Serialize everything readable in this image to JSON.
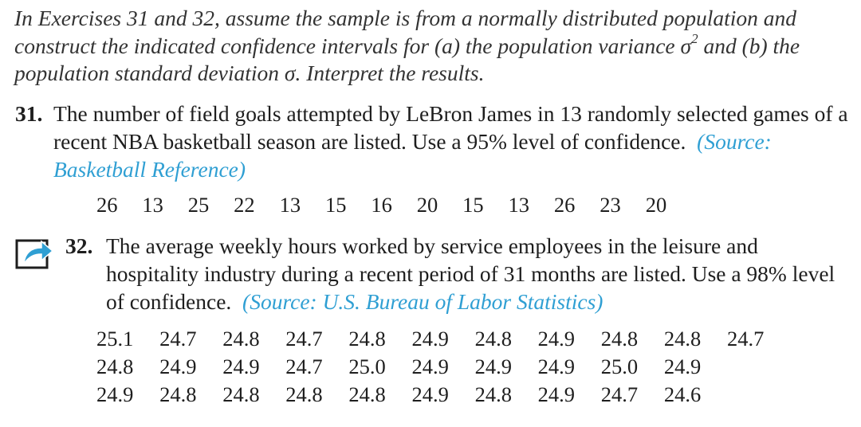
{
  "intro": {
    "text_a": "In Exercises 31 and 32, assume the sample is from a normally distributed population and construct the indicated confidence intervals for (a) the population variance σ",
    "sup": "2",
    "text_b": " and (b) the population standard deviation σ. Interpret the results."
  },
  "ex31": {
    "number": "31.",
    "text": "The number of field goals attempted by LeBron James in 13 randomly selected games of a recent NBA basketball season are listed. Use a 95% level of confidence.",
    "source": "(Source: Basketball Reference)",
    "data": [
      "26",
      "13",
      "25",
      "22",
      "13",
      "15",
      "16",
      "20",
      "15",
      "13",
      "26",
      "23",
      "20"
    ]
  },
  "ex32": {
    "icon": "share-arrow-icon",
    "number": "32.",
    "text": "The average weekly hours worked by service employees in the leisure and hospitality industry during a recent period of 31 months are listed. Use a 98% level of confidence.",
    "source": "(Source: U.S. Bureau of Labor Statistics)",
    "data_rows": [
      [
        "25.1",
        "24.7",
        "24.8",
        "24.7",
        "24.8",
        "24.9",
        "24.8",
        "24.9",
        "24.8",
        "24.8",
        "24.7"
      ],
      [
        "24.8",
        "24.9",
        "24.9",
        "24.7",
        "25.0",
        "24.9",
        "24.9",
        "24.9",
        "25.0",
        "24.9"
      ],
      [
        "24.9",
        "24.8",
        "24.8",
        "24.8",
        "24.8",
        "24.9",
        "24.8",
        "24.9",
        "24.7",
        "24.6"
      ]
    ],
    "icon_color": "#2f9fd3"
  }
}
